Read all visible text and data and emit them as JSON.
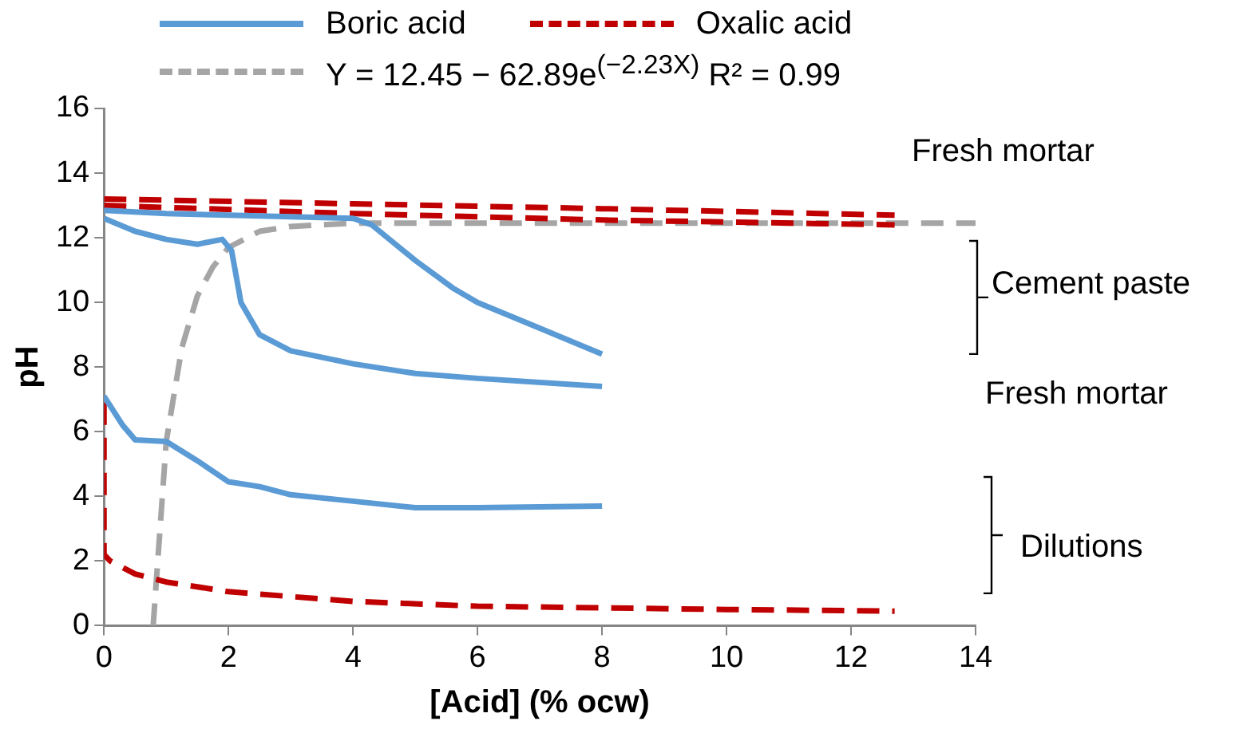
{
  "chart_data": {
    "type": "line",
    "xlabel": "[Acid] (% ocw)",
    "ylabel": "pH",
    "xlim": [
      0,
      14
    ],
    "xticks": [
      0,
      2,
      4,
      6,
      8,
      10,
      12,
      14
    ],
    "ylim": [
      0,
      16
    ],
    "yticks": [
      0,
      2,
      4,
      6,
      8,
      10,
      12,
      14,
      16
    ],
    "grid": false,
    "legend": "top",
    "marker": "none",
    "series": [
      {
        "name": "Boric acid",
        "color": "#5b9bd5",
        "line_style": "solid",
        "x": [
          0,
          1,
          2,
          3,
          4,
          4.3,
          5,
          5.6,
          6,
          7,
          8
        ],
        "values": [
          12.85,
          12.75,
          12.7,
          12.65,
          12.6,
          12.4,
          11.3,
          10.45,
          10.0,
          9.2,
          8.4
        ]
      },
      {
        "color": "#5b9bd5",
        "line_style": "solid",
        "x": [
          0,
          0.5,
          1,
          1.5,
          1.9,
          2.05,
          2.2,
          2.5,
          3,
          4,
          5,
          6,
          8
        ],
        "values": [
          12.6,
          12.2,
          11.95,
          11.8,
          11.95,
          11.6,
          10.0,
          9.0,
          8.5,
          8.1,
          7.8,
          7.65,
          7.4
        ]
      },
      {
        "color": "#5b9bd5",
        "line_style": "solid",
        "x": [
          0,
          0.3,
          0.5,
          1,
          1.5,
          2,
          2.5,
          3,
          4,
          5,
          6,
          8
        ],
        "values": [
          7.1,
          6.2,
          5.75,
          5.7,
          5.1,
          4.45,
          4.3,
          4.05,
          3.85,
          3.65,
          3.65,
          3.7
        ]
      },
      {
        "name": "Oxalic acid",
        "color": "#c00000",
        "line_style": "dashed",
        "x": [
          0,
          4,
          8,
          12.7
        ],
        "values": [
          13.2,
          13.05,
          12.9,
          12.7
        ]
      },
      {
        "color": "#c00000",
        "line_style": "dashed",
        "x": [
          0,
          4,
          8,
          12.7
        ],
        "values": [
          13.0,
          12.75,
          12.55,
          12.4
        ]
      },
      {
        "color": "#c00000",
        "line_style": "dashed",
        "x": [
          0,
          0,
          0.1,
          0.5,
          1,
          2,
          4,
          6,
          8,
          10,
          12.7
        ],
        "values": [
          6.9,
          2.2,
          2.0,
          1.6,
          1.35,
          1.05,
          0.75,
          0.6,
          0.55,
          0.5,
          0.45
        ]
      },
      {
        "name": "Y = 12.45 − 62.89e$^{(−2.23X)}$   R² = 0.99",
        "color": "#a5a5a5",
        "line_style": "dashed",
        "x": [
          0.79,
          1,
          1.25,
          1.5,
          1.75,
          2,
          2.5,
          3,
          4,
          6,
          14
        ],
        "values": [
          0,
          5.7,
          8.6,
          10.2,
          11.1,
          11.7,
          12.2,
          12.35,
          12.45,
          12.45,
          12.45
        ]
      }
    ],
    "annotations": [
      "Fresh mortar",
      "Cement paste",
      "Fresh mortar",
      "Dilutions"
    ]
  }
}
